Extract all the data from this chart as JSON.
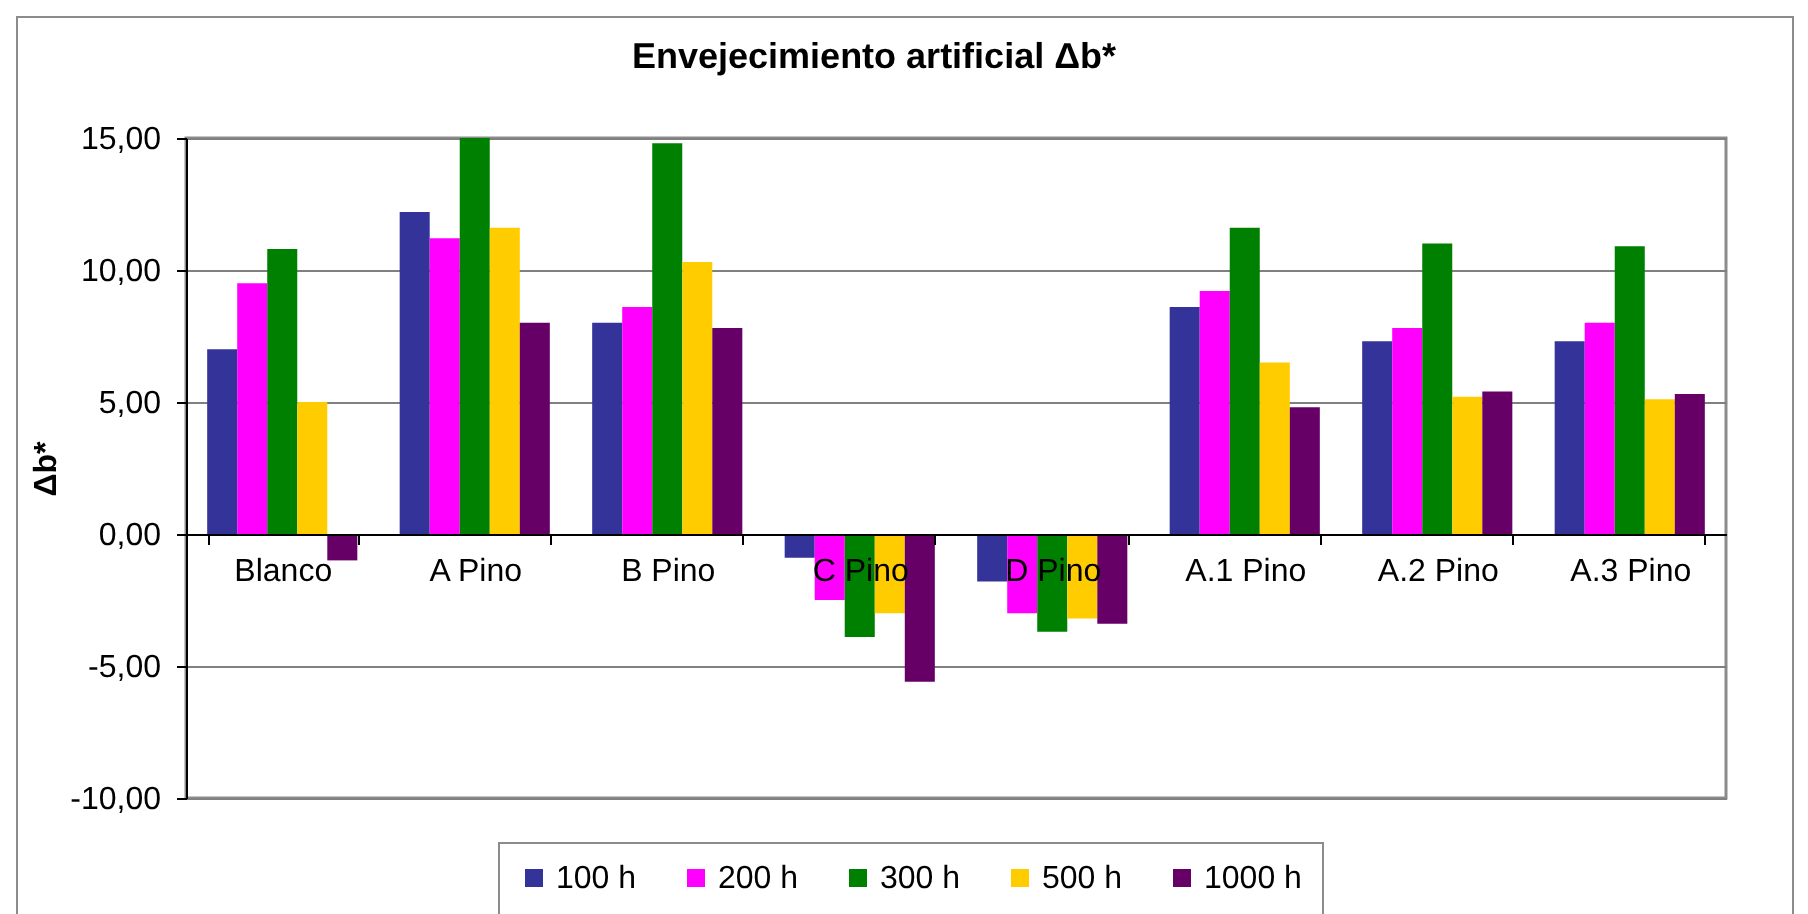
{
  "chart_data": {
    "type": "bar",
    "title": "Envejecimiento artificial  Δb*",
    "ylabel": "Δb*",
    "categories": [
      "Blanco",
      "A Pino",
      "B Pino",
      "C Pino",
      "D Pino",
      "A.1 Pino",
      "A.2 Pino",
      "A.3 Pino"
    ],
    "series": [
      {
        "name": "100 h",
        "color": "#333399",
        "values": [
          7.0,
          12.2,
          8.0,
          -0.9,
          -1.8,
          8.6,
          7.3,
          7.3
        ]
      },
      {
        "name": "200 h",
        "color": "#ff00ff",
        "values": [
          9.5,
          11.2,
          8.6,
          -2.5,
          -3.0,
          9.2,
          7.8,
          8.0
        ]
      },
      {
        "name": "300 h",
        "color": "#008000",
        "values": [
          10.8,
          15.0,
          14.8,
          -3.9,
          -3.7,
          11.6,
          11.0,
          10.9
        ]
      },
      {
        "name": "500 h",
        "color": "#ffcc00",
        "values": [
          5.0,
          11.6,
          10.3,
          -3.0,
          -3.2,
          6.5,
          5.2,
          5.1
        ]
      },
      {
        "name": "1000 h",
        "color": "#660066",
        "values": [
          -1.0,
          8.0,
          7.8,
          -5.6,
          -3.4,
          4.8,
          5.4,
          5.3
        ]
      }
    ],
    "ylim": [
      -10,
      15
    ],
    "yticks": [
      {
        "value": -10,
        "label": "-10,00"
      },
      {
        "value": -5,
        "label": "-5,00"
      },
      {
        "value": 0,
        "label": "0,00"
      },
      {
        "value": 5,
        "label": "5,00"
      },
      {
        "value": 10,
        "label": "10,00"
      },
      {
        "value": 15,
        "label": "15,00"
      }
    ],
    "grid": "y",
    "legend": "bottom"
  }
}
